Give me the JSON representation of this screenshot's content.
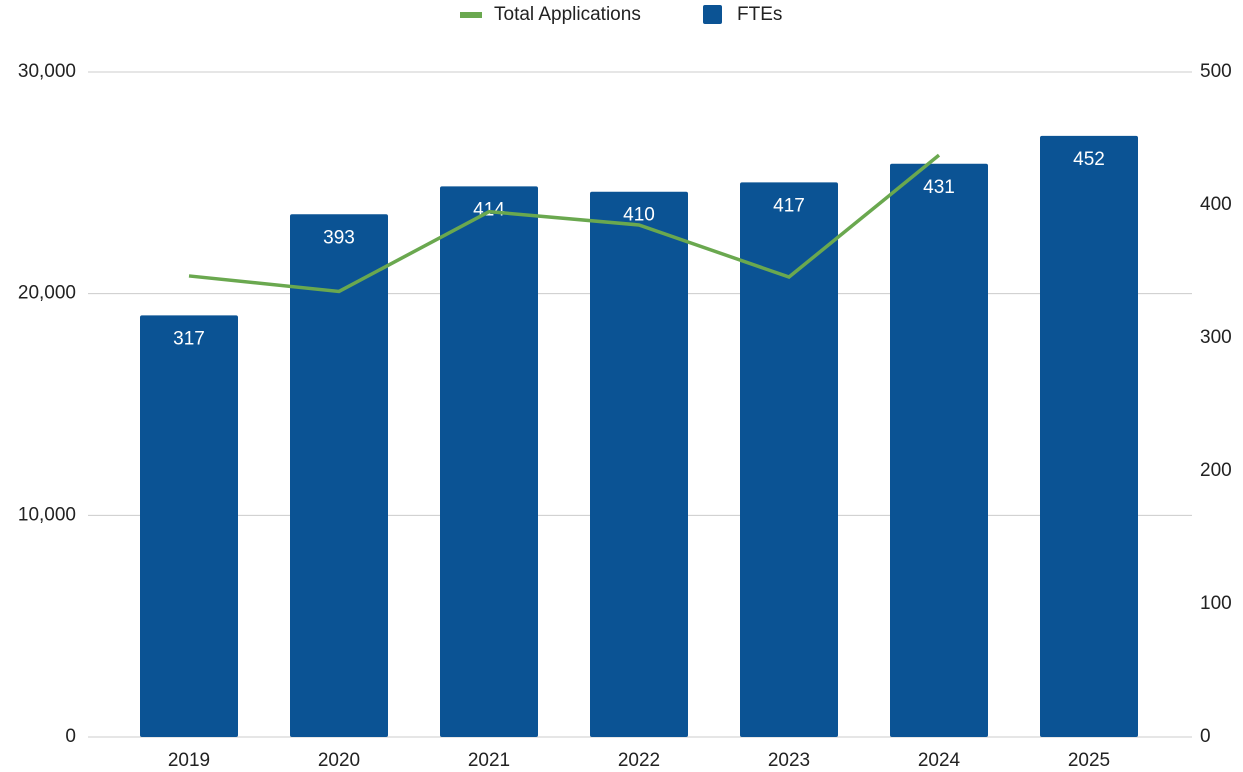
{
  "chart_data": {
    "type": "bar-line",
    "categories": [
      "2019",
      "2020",
      "2021",
      "2022",
      "2023",
      "2024",
      "2025"
    ],
    "series": [
      {
        "name": "Total Applications",
        "type": "line",
        "color": "#6aa84f",
        "axis": "y",
        "values": [
          20800,
          20100,
          23700,
          23100,
          20750,
          26250,
          null
        ]
      },
      {
        "name": "FTEs",
        "type": "bar",
        "color": "#0b5394",
        "axis": "y2",
        "values": [
          317,
          393,
          414,
          410,
          417,
          431,
          452
        ]
      }
    ],
    "ylim": [
      0,
      30000
    ],
    "yticks": [
      {
        "value": 0,
        "label": "0"
      },
      {
        "value": 10000,
        "label": "10,000"
      },
      {
        "value": 20000,
        "label": "20,000"
      },
      {
        "value": 30000,
        "label": "30,000"
      }
    ],
    "y2lim": [
      0,
      500
    ],
    "y2ticks": [
      0,
      100,
      200,
      300,
      400,
      500
    ],
    "grid": true,
    "legend": "top"
  }
}
